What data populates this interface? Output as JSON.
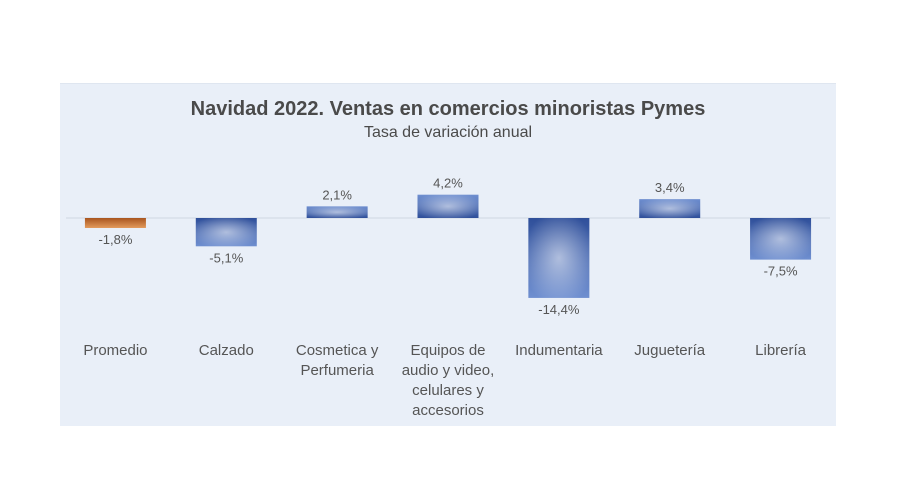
{
  "chart_data": {
    "type": "bar",
    "title": "Navidad 2022. Ventas en comercios minoristas Pymes",
    "subtitle": "Tasa de variación anual",
    "categories": [
      "Promedio",
      "Calzado",
      "Cosmetica y Perfumeria",
      "Equipos de audio y video, celulares y accesorios",
      "Indumentaria",
      "Juguetería",
      "Librería"
    ],
    "category_lines": [
      [
        "Promedio"
      ],
      [
        "Calzado"
      ],
      [
        "Cosmetica y",
        "Perfumeria"
      ],
      [
        "Equipos de",
        "audio y video,",
        "celulares y",
        "accesorios"
      ],
      [
        "Indumentaria"
      ],
      [
        "Juguetería"
      ],
      [
        "Librería"
      ]
    ],
    "values": [
      -1.8,
      -5.1,
      2.1,
      4.2,
      -14.4,
      3.4,
      -7.5
    ],
    "value_labels": [
      "-1,8%",
      "-5,1%",
      "2,1%",
      "4,2%",
      "-14,4%",
      "3,4%",
      "-7,5%"
    ],
    "highlight_index": 0,
    "colors": {
      "highlight": "#c87533",
      "bar": "#4a6cb8",
      "bar_light": "#9fb6e4",
      "background": "#e9eff8",
      "axis": "#d0d7e2"
    },
    "ylim": [
      -16,
      6
    ],
    "xlabel": "",
    "ylabel": "",
    "legend": "none",
    "grid": false
  }
}
